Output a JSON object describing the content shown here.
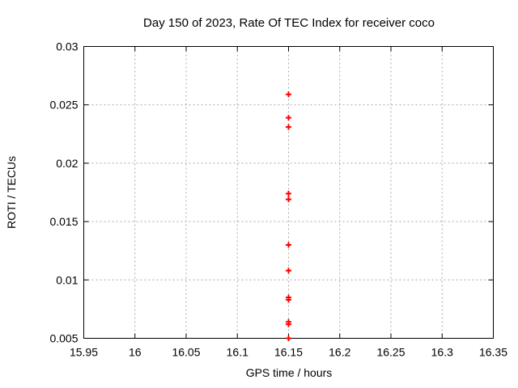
{
  "page": {
    "background": "#ffffff"
  },
  "chart_data": {
    "type": "scatter",
    "title": "Day 150 of 2023, Rate Of TEC Index for receiver coco",
    "xlabel": "GPS time / hours",
    "ylabel": "ROTI / TECUs",
    "xlim": [
      15.95,
      16.35
    ],
    "ylim": [
      0.005,
      0.03
    ],
    "grid": true,
    "legend_position": "none",
    "axis_color": "#000000",
    "grid_color": "#a8a8a8",
    "marker": {
      "shape": "plus",
      "color": "#ff0000",
      "size": 9
    },
    "x_ticks": [
      {
        "value": 15.95,
        "label": "15.95"
      },
      {
        "value": 16.0,
        "label": "16"
      },
      {
        "value": 16.05,
        "label": "16.05"
      },
      {
        "value": 16.1,
        "label": "16.1"
      },
      {
        "value": 16.15,
        "label": "16.15"
      },
      {
        "value": 16.2,
        "label": "16.2"
      },
      {
        "value": 16.25,
        "label": "16.25"
      },
      {
        "value": 16.3,
        "label": "16.3"
      },
      {
        "value": 16.35,
        "label": "16.35"
      }
    ],
    "y_ticks": [
      {
        "value": 0.005,
        "label": "0.005"
      },
      {
        "value": 0.01,
        "label": "0.01"
      },
      {
        "value": 0.015,
        "label": "0.015"
      },
      {
        "value": 0.02,
        "label": "0.02"
      },
      {
        "value": 0.025,
        "label": "0.025"
      },
      {
        "value": 0.03,
        "label": "0.03"
      }
    ],
    "series": [
      {
        "name": "ROTI",
        "points": [
          {
            "x": 16.15,
            "y": 0.0259
          },
          {
            "x": 16.15,
            "y": 0.0239
          },
          {
            "x": 16.15,
            "y": 0.0231
          },
          {
            "x": 16.15,
            "y": 0.0174
          },
          {
            "x": 16.15,
            "y": 0.0169
          },
          {
            "x": 16.15,
            "y": 0.013
          },
          {
            "x": 16.15,
            "y": 0.0108
          },
          {
            "x": 16.15,
            "y": 0.0085
          },
          {
            "x": 16.15,
            "y": 0.0083
          },
          {
            "x": 16.15,
            "y": 0.0064
          },
          {
            "x": 16.15,
            "y": 0.0062
          },
          {
            "x": 16.15,
            "y": 0.005
          }
        ]
      }
    ]
  }
}
